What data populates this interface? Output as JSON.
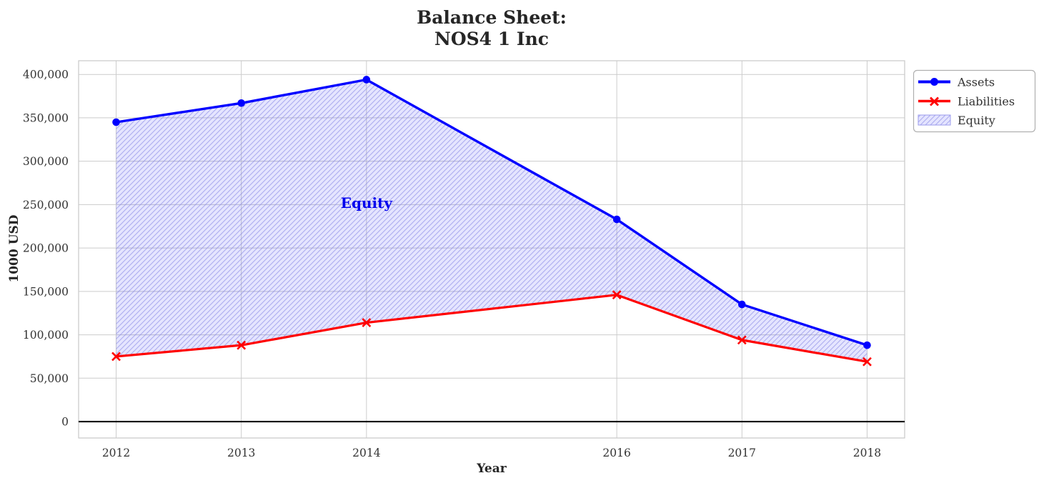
{
  "title": {
    "line1": "Balance Sheet:",
    "line2": "NOS4 1 Inc"
  },
  "chart_data": {
    "type": "line",
    "x": [
      2012,
      2013,
      2014,
      2016,
      2017,
      2018
    ],
    "xtick_labels": [
      "2012",
      "2013",
      "2014",
      "2016",
      "2017",
      "2018"
    ],
    "series": [
      {
        "name": "Assets",
        "color": "#0000ff",
        "marker": "circle",
        "values": [
          345000,
          367000,
          394000,
          233000,
          135000,
          88000
        ]
      },
      {
        "name": "Liabilities",
        "color": "#ff0000",
        "marker": "x",
        "values": [
          75000,
          88000,
          114000,
          146000,
          94000,
          69000
        ]
      }
    ],
    "area": {
      "name": "Equity",
      "between": [
        "Assets",
        "Liabilities"
      ],
      "fill": "#0000ff",
      "fill_opacity": 0.1,
      "hatch": "//",
      "hatch_color": "#7d7de1"
    },
    "annotation": {
      "text": "Equity",
      "x": 2014,
      "y": 252000,
      "color": "#0000ee"
    },
    "xlabel": "Year",
    "ylabel": "1000 USD",
    "xlim": [
      2011.7,
      2018.3
    ],
    "ylim": [
      -18900,
      415800
    ],
    "yticks": [
      0,
      50000,
      100000,
      150000,
      200000,
      250000,
      300000,
      350000,
      400000
    ],
    "ytick_labels": [
      "0",
      "50,000",
      "100,000",
      "150,000",
      "200,000",
      "250,000",
      "300,000",
      "350,000",
      "400,000"
    ],
    "grid": true,
    "zero_line": true,
    "legend": {
      "position": "outside-upper-right",
      "items": [
        "Assets",
        "Liabilities",
        "Equity"
      ]
    }
  },
  "colors": {
    "grid": "#cccccc",
    "spine": "#c9c9c9",
    "zero_line": "#000000",
    "legend_border": "#b0b0b0",
    "background": "#ffffff"
  }
}
